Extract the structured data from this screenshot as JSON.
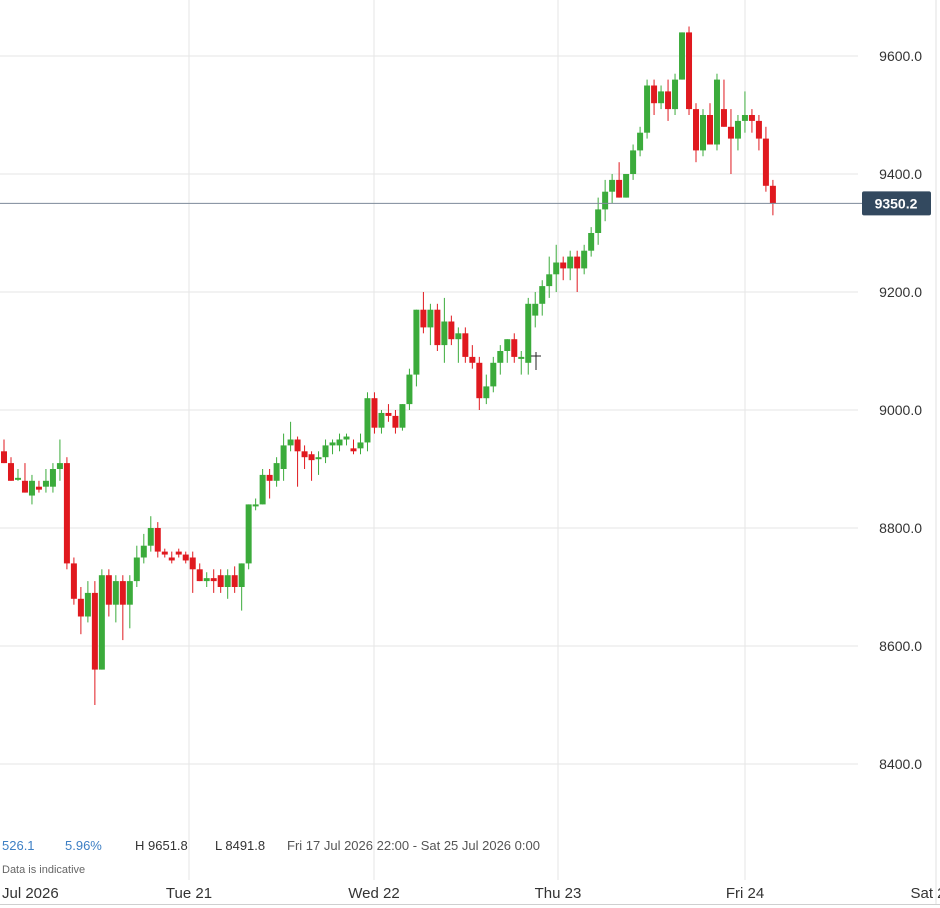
{
  "chart_data": {
    "type": "candlestick",
    "x_labels": [
      "Jul 2026",
      "Tue 21",
      "Wed 22",
      "Thu 23",
      "Fri 24",
      "Sat 2"
    ],
    "y_ticks": [
      "8400.0",
      "8600.0",
      "8800.0",
      "9000.0",
      "9200.0",
      "9400.0",
      "9600.0"
    ],
    "ylim": [
      8350,
      9700
    ],
    "current_price": "9350.2",
    "grid": true,
    "axis_position": "right",
    "colors": {
      "up": "#3bab3b",
      "down": "#e0191f",
      "grid": "#e6e6e6",
      "price_tag": "#33495f"
    },
    "candles": [
      {
        "o": 8930,
        "h": 8950,
        "l": 8910,
        "c": 8910
      },
      {
        "o": 8910,
        "h": 8920,
        "l": 8880,
        "c": 8880
      },
      {
        "o": 8885,
        "h": 8900,
        "l": 8880,
        "c": 8885
      },
      {
        "o": 8880,
        "h": 8910,
        "l": 8860,
        "c": 8860
      },
      {
        "o": 8855,
        "h": 8890,
        "l": 8840,
        "c": 8880
      },
      {
        "o": 8870,
        "h": 8880,
        "l": 8860,
        "c": 8865
      },
      {
        "o": 8870,
        "h": 8900,
        "l": 8860,
        "c": 8880
      },
      {
        "o": 8870,
        "h": 8910,
        "l": 8860,
        "c": 8900
      },
      {
        "o": 8900,
        "h": 8950,
        "l": 8880,
        "c": 8910
      },
      {
        "o": 8910,
        "h": 8920,
        "l": 8730,
        "c": 8740
      },
      {
        "o": 8740,
        "h": 8750,
        "l": 8670,
        "c": 8680
      },
      {
        "o": 8680,
        "h": 8700,
        "l": 8620,
        "c": 8650
      },
      {
        "o": 8650,
        "h": 8710,
        "l": 8640,
        "c": 8690
      },
      {
        "o": 8690,
        "h": 8710,
        "l": 8500,
        "c": 8560
      },
      {
        "o": 8560,
        "h": 8730,
        "l": 8560,
        "c": 8720
      },
      {
        "o": 8720,
        "h": 8730,
        "l": 8650,
        "c": 8670
      },
      {
        "o": 8670,
        "h": 8720,
        "l": 8640,
        "c": 8710
      },
      {
        "o": 8710,
        "h": 8720,
        "l": 8610,
        "c": 8670
      },
      {
        "o": 8670,
        "h": 8720,
        "l": 8630,
        "c": 8710
      },
      {
        "o": 8710,
        "h": 8770,
        "l": 8700,
        "c": 8750
      },
      {
        "o": 8750,
        "h": 8790,
        "l": 8740,
        "c": 8770
      },
      {
        "o": 8770,
        "h": 8820,
        "l": 8760,
        "c": 8800
      },
      {
        "o": 8800,
        "h": 8810,
        "l": 8750,
        "c": 8760
      },
      {
        "o": 8760,
        "h": 8765,
        "l": 8750,
        "c": 8755
      },
      {
        "o": 8750,
        "h": 8760,
        "l": 8740,
        "c": 8745
      },
      {
        "o": 8760,
        "h": 8765,
        "l": 8750,
        "c": 8755
      },
      {
        "o": 8755,
        "h": 8760,
        "l": 8740,
        "c": 8745
      },
      {
        "o": 8750,
        "h": 8760,
        "l": 8690,
        "c": 8730
      },
      {
        "o": 8730,
        "h": 8740,
        "l": 8710,
        "c": 8710
      },
      {
        "o": 8710,
        "h": 8725,
        "l": 8700,
        "c": 8715
      },
      {
        "o": 8715,
        "h": 8730,
        "l": 8690,
        "c": 8710
      },
      {
        "o": 8720,
        "h": 8730,
        "l": 8690,
        "c": 8700
      },
      {
        "o": 8700,
        "h": 8730,
        "l": 8680,
        "c": 8720
      },
      {
        "o": 8720,
        "h": 8735,
        "l": 8690,
        "c": 8700
      },
      {
        "o": 8700,
        "h": 8740,
        "l": 8660,
        "c": 8740
      },
      {
        "o": 8740,
        "h": 8840,
        "l": 8730,
        "c": 8840
      },
      {
        "o": 8840,
        "h": 8850,
        "l": 8830,
        "c": 8840
      },
      {
        "o": 8840,
        "h": 8900,
        "l": 8840,
        "c": 8890
      },
      {
        "o": 8890,
        "h": 8900,
        "l": 8850,
        "c": 8880
      },
      {
        "o": 8880,
        "h": 8920,
        "l": 8870,
        "c": 8910
      },
      {
        "o": 8900,
        "h": 8960,
        "l": 8880,
        "c": 8940
      },
      {
        "o": 8940,
        "h": 8980,
        "l": 8930,
        "c": 8950
      },
      {
        "o": 8950,
        "h": 8955,
        "l": 8870,
        "c": 8930
      },
      {
        "o": 8930,
        "h": 8940,
        "l": 8900,
        "c": 8920
      },
      {
        "o": 8925,
        "h": 8930,
        "l": 8880,
        "c": 8915
      },
      {
        "o": 8920,
        "h": 8930,
        "l": 8890,
        "c": 8920
      },
      {
        "o": 8920,
        "h": 8950,
        "l": 8910,
        "c": 8940
      },
      {
        "o": 8940,
        "h": 8950,
        "l": 8925,
        "c": 8945
      },
      {
        "o": 8940,
        "h": 8960,
        "l": 8930,
        "c": 8950
      },
      {
        "o": 8950,
        "h": 8960,
        "l": 8940,
        "c": 8955
      },
      {
        "o": 8935,
        "h": 8950,
        "l": 8925,
        "c": 8930
      },
      {
        "o": 8935,
        "h": 8960,
        "l": 8925,
        "c": 8945
      },
      {
        "o": 8945,
        "h": 9030,
        "l": 8930,
        "c": 9020
      },
      {
        "o": 9020,
        "h": 9030,
        "l": 8960,
        "c": 8970
      },
      {
        "o": 8970,
        "h": 9000,
        "l": 8960,
        "c": 8995
      },
      {
        "o": 8995,
        "h": 9010,
        "l": 8980,
        "c": 8990
      },
      {
        "o": 8990,
        "h": 9000,
        "l": 8960,
        "c": 8970
      },
      {
        "o": 8970,
        "h": 9010,
        "l": 8965,
        "c": 9010
      },
      {
        "o": 9010,
        "h": 9070,
        "l": 9000,
        "c": 9060
      },
      {
        "o": 9060,
        "h": 9170,
        "l": 9040,
        "c": 9170
      },
      {
        "o": 9170,
        "h": 9200,
        "l": 9130,
        "c": 9140
      },
      {
        "o": 9140,
        "h": 9180,
        "l": 9110,
        "c": 9170
      },
      {
        "o": 9170,
        "h": 9180,
        "l": 9100,
        "c": 9110
      },
      {
        "o": 9110,
        "h": 9190,
        "l": 9080,
        "c": 9150
      },
      {
        "o": 9150,
        "h": 9160,
        "l": 9110,
        "c": 9120
      },
      {
        "o": 9120,
        "h": 9140,
        "l": 9080,
        "c": 9130
      },
      {
        "o": 9130,
        "h": 9140,
        "l": 9080,
        "c": 9090
      },
      {
        "o": 9090,
        "h": 9110,
        "l": 9070,
        "c": 9080
      },
      {
        "o": 9080,
        "h": 9090,
        "l": 9000,
        "c": 9020
      },
      {
        "o": 9020,
        "h": 9060,
        "l": 9010,
        "c": 9040
      },
      {
        "o": 9040,
        "h": 9090,
        "l": 9030,
        "c": 9080
      },
      {
        "o": 9080,
        "h": 9110,
        "l": 9060,
        "c": 9100
      },
      {
        "o": 9100,
        "h": 9120,
        "l": 9080,
        "c": 9120
      },
      {
        "o": 9120,
        "h": 9130,
        "l": 9080,
        "c": 9090
      },
      {
        "o": 9090,
        "h": 9100,
        "l": 9060,
        "c": 9090
      },
      {
        "o": 9080,
        "h": 9190,
        "l": 9060,
        "c": 9180
      },
      {
        "o": 9160,
        "h": 9200,
        "l": 9140,
        "c": 9180
      },
      {
        "o": 9180,
        "h": 9220,
        "l": 9160,
        "c": 9210
      },
      {
        "o": 9210,
        "h": 9260,
        "l": 9190,
        "c": 9230
      },
      {
        "o": 9230,
        "h": 9280,
        "l": 9200,
        "c": 9250
      },
      {
        "o": 9250,
        "h": 9260,
        "l": 9220,
        "c": 9240
      },
      {
        "o": 9240,
        "h": 9270,
        "l": 9220,
        "c": 9260
      },
      {
        "o": 9260,
        "h": 9270,
        "l": 9200,
        "c": 9240
      },
      {
        "o": 9240,
        "h": 9280,
        "l": 9230,
        "c": 9270
      },
      {
        "o": 9270,
        "h": 9310,
        "l": 9260,
        "c": 9300
      },
      {
        "o": 9300,
        "h": 9360,
        "l": 9280,
        "c": 9340
      },
      {
        "o": 9340,
        "h": 9390,
        "l": 9320,
        "c": 9370
      },
      {
        "o": 9370,
        "h": 9400,
        "l": 9350,
        "c": 9390
      },
      {
        "o": 9390,
        "h": 9420,
        "l": 9360,
        "c": 9360
      },
      {
        "o": 9360,
        "h": 9400,
        "l": 9360,
        "c": 9400
      },
      {
        "o": 9400,
        "h": 9450,
        "l": 9390,
        "c": 9440
      },
      {
        "o": 9440,
        "h": 9480,
        "l": 9430,
        "c": 9470
      },
      {
        "o": 9470,
        "h": 9560,
        "l": 9460,
        "c": 9550
      },
      {
        "o": 9550,
        "h": 9560,
        "l": 9500,
        "c": 9520
      },
      {
        "o": 9520,
        "h": 9550,
        "l": 9510,
        "c": 9540
      },
      {
        "o": 9540,
        "h": 9560,
        "l": 9490,
        "c": 9510
      },
      {
        "o": 9510,
        "h": 9570,
        "l": 9500,
        "c": 9560
      },
      {
        "o": 9560,
        "h": 9640,
        "l": 9560,
        "c": 9640
      },
      {
        "o": 9640,
        "h": 9650,
        "l": 9500,
        "c": 9510
      },
      {
        "o": 9510,
        "h": 9520,
        "l": 9420,
        "c": 9440
      },
      {
        "o": 9440,
        "h": 9510,
        "l": 9430,
        "c": 9500
      },
      {
        "o": 9500,
        "h": 9520,
        "l": 9450,
        "c": 9450
      },
      {
        "o": 9450,
        "h": 9570,
        "l": 9440,
        "c": 9560
      },
      {
        "o": 9510,
        "h": 9560,
        "l": 9480,
        "c": 9480
      },
      {
        "o": 9480,
        "h": 9510,
        "l": 9400,
        "c": 9460
      },
      {
        "o": 9460,
        "h": 9500,
        "l": 9440,
        "c": 9490
      },
      {
        "o": 9490,
        "h": 9540,
        "l": 9470,
        "c": 9500
      },
      {
        "o": 9500,
        "h": 9510,
        "l": 9470,
        "c": 9490
      },
      {
        "o": 9490,
        "h": 9500,
        "l": 9440,
        "c": 9460
      },
      {
        "o": 9460,
        "h": 9480,
        "l": 9370,
        "c": 9380
      },
      {
        "o": 9380,
        "h": 9390,
        "l": 9330,
        "c": 9350
      }
    ]
  },
  "stats": {
    "change": "526.1",
    "change_pct": "5.96%",
    "high": "H 9651.8",
    "low": "L 8491.8",
    "range": "Fri 17 Jul 2026 22:00 - Sat 25 Jul 2026 0:00",
    "note": "Data is indicative"
  }
}
